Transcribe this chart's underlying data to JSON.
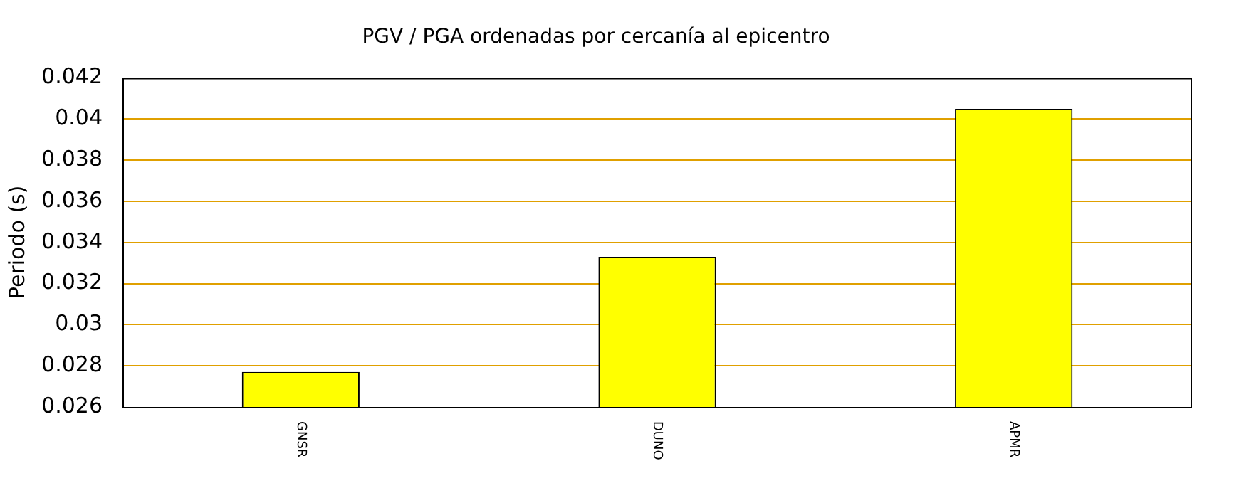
{
  "chart_data": {
    "type": "bar",
    "title": "PGV / PGA ordenadas por cercanía al epicentro",
    "ylabel": "Periodo (s)",
    "categories": [
      "GNSR",
      "DUNO",
      "APMR"
    ],
    "values": [
      0.0277,
      0.0333,
      0.0405
    ],
    "color": "#ffff00",
    "ylim": [
      0.026,
      0.042
    ],
    "yticks": [
      0.026,
      0.028,
      0.03,
      0.032,
      0.034,
      0.036,
      0.038,
      0.04,
      0.042
    ],
    "grid": "y"
  }
}
